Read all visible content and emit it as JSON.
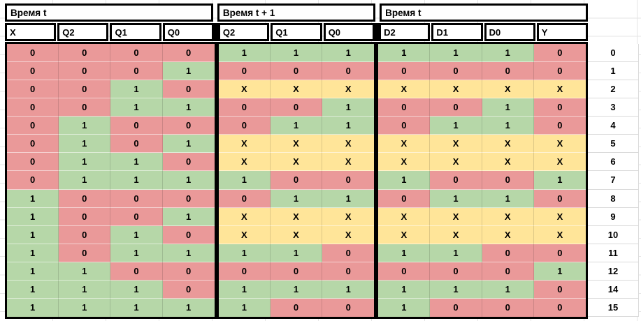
{
  "sheet": {
    "sections": [
      {
        "title": "Время t",
        "columns": [
          "X",
          "Q2",
          "Q1",
          "Q0"
        ]
      },
      {
        "title": "Время t + 1",
        "columns": [
          "Q2",
          "Q1",
          "Q0"
        ]
      },
      {
        "title": "Время t",
        "columns": [
          "D2",
          "D1",
          "D0",
          "Y"
        ]
      }
    ],
    "value_colors": {
      "0": "#ea9999",
      "1": "#b6d7a8",
      "X": "#ffe599"
    },
    "border_color": "#000000",
    "rows": [
      {
        "label": "0",
        "values": [
          "0",
          "0",
          "0",
          "0",
          "1",
          "1",
          "1",
          "1",
          "1",
          "1",
          "0"
        ]
      },
      {
        "label": "1",
        "values": [
          "0",
          "0",
          "0",
          "1",
          "0",
          "0",
          "0",
          "0",
          "0",
          "0",
          "0"
        ]
      },
      {
        "label": "2",
        "values": [
          "0",
          "0",
          "1",
          "0",
          "X",
          "X",
          "X",
          "X",
          "X",
          "X",
          "X"
        ]
      },
      {
        "label": "3",
        "values": [
          "0",
          "0",
          "1",
          "1",
          "0",
          "0",
          "1",
          "0",
          "0",
          "1",
          "0"
        ]
      },
      {
        "label": "4",
        "values": [
          "0",
          "1",
          "0",
          "0",
          "0",
          "1",
          "1",
          "0",
          "1",
          "1",
          "0"
        ]
      },
      {
        "label": "5",
        "values": [
          "0",
          "1",
          "0",
          "1",
          "X",
          "X",
          "X",
          "X",
          "X",
          "X",
          "X"
        ]
      },
      {
        "label": "6",
        "values": [
          "0",
          "1",
          "1",
          "0",
          "X",
          "X",
          "X",
          "X",
          "X",
          "X",
          "X"
        ]
      },
      {
        "label": "7",
        "values": [
          "0",
          "1",
          "1",
          "1",
          "1",
          "0",
          "0",
          "1",
          "0",
          "0",
          "1"
        ]
      },
      {
        "label": "8",
        "values": [
          "1",
          "0",
          "0",
          "0",
          "0",
          "1",
          "1",
          "0",
          "1",
          "1",
          "0"
        ]
      },
      {
        "label": "9",
        "values": [
          "1",
          "0",
          "0",
          "1",
          "X",
          "X",
          "X",
          "X",
          "X",
          "X",
          "X"
        ]
      },
      {
        "label": "10",
        "values": [
          "1",
          "0",
          "1",
          "0",
          "X",
          "X",
          "X",
          "X",
          "X",
          "X",
          "X"
        ]
      },
      {
        "label": "11",
        "values": [
          "1",
          "0",
          "1",
          "1",
          "1",
          "1",
          "0",
          "1",
          "1",
          "0",
          "0"
        ]
      },
      {
        "label": "12",
        "values": [
          "1",
          "1",
          "0",
          "0",
          "0",
          "0",
          "0",
          "0",
          "0",
          "0",
          "1"
        ]
      },
      {
        "label": "14",
        "values": [
          "1",
          "1",
          "1",
          "0",
          "1",
          "1",
          "1",
          "1",
          "1",
          "1",
          "0"
        ]
      },
      {
        "label": "15",
        "values": [
          "1",
          "1",
          "1",
          "1",
          "1",
          "0",
          "0",
          "1",
          "0",
          "0",
          "0"
        ]
      }
    ]
  }
}
